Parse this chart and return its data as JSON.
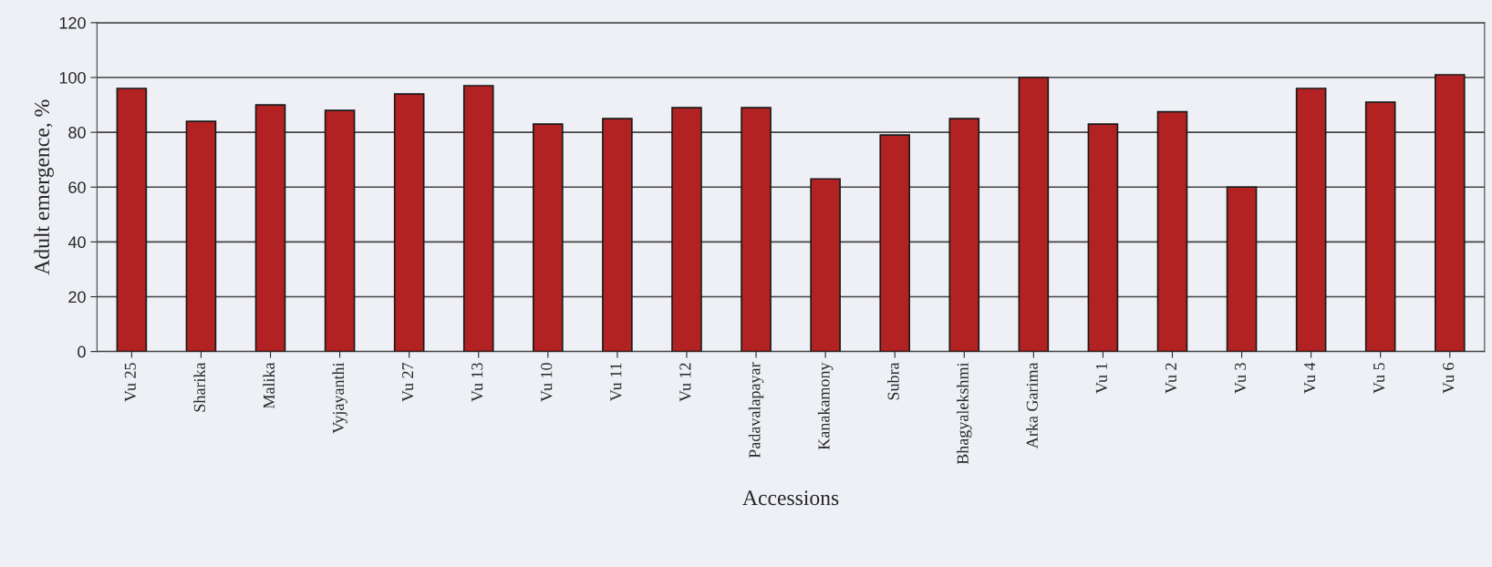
{
  "chart_data": {
    "type": "bar",
    "categories": [
      "Vu 25",
      "Sharika",
      "Malika",
      "Vyjayanthi",
      "Vu 27",
      "Vu 13",
      "Vu 10",
      "Vu 11",
      "Vu 12",
      "Padavalapayar",
      "Kanakamony",
      "Subra",
      "Bhagyalekshmi",
      "Arka Garima",
      "Vu 1",
      "Vu 2",
      "Vu 3",
      "Vu 4",
      "Vu 5",
      "Vu 6"
    ],
    "values": [
      96,
      84,
      90,
      88,
      94,
      97,
      83,
      85,
      89,
      89,
      63,
      79,
      85,
      100,
      83,
      87.5,
      60,
      96,
      91,
      101
    ],
    "color": "#b22222",
    "xlabel": "Accessions",
    "ylabel": "Adult emergence, %",
    "ylim": [
      0,
      120
    ],
    "yticks": [
      0,
      20,
      40,
      60,
      80,
      100,
      120
    ],
    "grid": "y",
    "legend": false
  }
}
